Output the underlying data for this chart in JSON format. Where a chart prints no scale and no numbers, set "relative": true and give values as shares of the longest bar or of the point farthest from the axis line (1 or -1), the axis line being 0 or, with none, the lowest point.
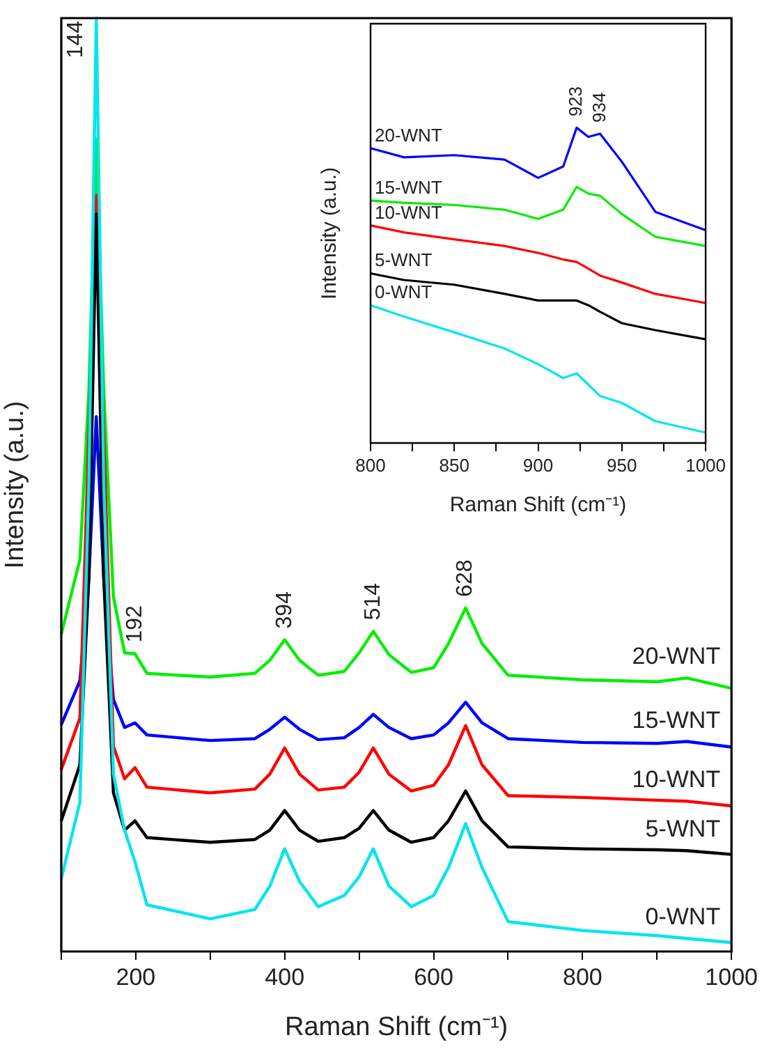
{
  "chart_data": [
    {
      "type": "line",
      "xlabel": "Raman Shift (cm⁻¹)",
      "ylabel": "Intensity (a.u.)",
      "relative": true,
      "xlim": [
        100,
        1000
      ],
      "xticks": [
        {
          "value": 100,
          "label": null
        },
        200,
        {
          "value": 300,
          "label": null
        },
        400,
        {
          "value": 500,
          "label": null
        },
        600,
        {
          "value": 700,
          "label": null
        },
        800,
        {
          "value": 900,
          "label": null
        },
        1000
      ],
      "x": [
        100,
        125,
        137,
        147,
        157,
        170,
        185,
        199,
        215,
        300,
        360,
        380,
        400,
        420,
        445,
        480,
        500,
        519,
        540,
        570,
        600,
        620,
        643,
        665,
        700,
        800,
        900,
        940,
        1000
      ],
      "series": [
        {
          "name": "0-WNT",
          "color": "#00e5f0",
          "values": [
            0.078,
            0.16,
            0.5,
            1.0,
            0.5,
            0.19,
            0.13,
            0.096,
            0.05,
            0.035,
            0.045,
            0.07,
            0.11,
            0.075,
            0.048,
            0.06,
            0.08,
            0.11,
            0.07,
            0.048,
            0.06,
            0.09,
            0.137,
            0.09,
            0.032,
            0.0225,
            0.017,
            0.014,
            0.0095
          ]
        },
        {
          "name": "5-WNT",
          "color": "#000000",
          "values": [
            0.14,
            0.2,
            0.4,
            0.79,
            0.4,
            0.17,
            0.13,
            0.14,
            0.122,
            0.117,
            0.12,
            0.13,
            0.151,
            0.13,
            0.118,
            0.122,
            0.132,
            0.151,
            0.13,
            0.117,
            0.122,
            0.14,
            0.172,
            0.14,
            0.112,
            0.11,
            0.109,
            0.108,
            0.104
          ]
        },
        {
          "name": "10-WNT",
          "color": "#ff0000",
          "values": [
            0.195,
            0.25,
            null,
            0.81,
            null,
            0.22,
            0.185,
            0.197,
            0.176,
            0.17,
            0.174,
            0.19,
            0.218,
            0.19,
            0.173,
            0.176,
            0.192,
            0.218,
            0.19,
            0.172,
            0.178,
            0.2,
            0.242,
            0.2,
            0.167,
            0.165,
            0.162,
            0.161,
            0.156
          ]
        },
        {
          "name": "15-WNT",
          "color": "#0000ff",
          "values": [
            0.243,
            0.29,
            0.4,
            0.573,
            0.4,
            0.27,
            0.24,
            0.245,
            0.232,
            0.226,
            0.228,
            0.238,
            0.251,
            0.238,
            0.227,
            0.229,
            0.24,
            0.254,
            0.24,
            0.228,
            0.232,
            0.245,
            0.267,
            0.245,
            0.228,
            0.224,
            0.223,
            0.225,
            0.219
          ]
        },
        {
          "name": "20-WNT",
          "color": "#00ee00",
          "values": [
            0.34,
            0.42,
            0.6,
            0.87,
            0.6,
            0.38,
            0.32,
            0.319,
            0.298,
            0.294,
            0.298,
            0.312,
            0.334,
            0.312,
            0.296,
            0.3,
            0.32,
            0.343,
            0.318,
            0.299,
            0.304,
            0.33,
            0.368,
            0.33,
            0.296,
            0.291,
            0.289,
            0.293,
            0.282
          ]
        }
      ],
      "annotations": [
        {
          "text": "144",
          "x": 147,
          "y": 1.0
        },
        {
          "text": "192",
          "x": 199,
          "y": 0.319
        },
        {
          "text": "394",
          "x": 400,
          "y": 0.334
        },
        {
          "text": "514",
          "x": 519,
          "y": 0.343
        },
        {
          "text": "628",
          "x": 643,
          "y": 0.368
        }
      ]
    },
    {
      "type": "line",
      "xlabel": "Raman Shift (cm⁻¹)",
      "ylabel": "Intensity (a.u.)",
      "relative": true,
      "xlim": [
        800,
        1000
      ],
      "xticks": [
        800,
        {
          "value": 825,
          "label": null
        },
        850,
        {
          "value": 875,
          "label": null
        },
        900,
        {
          "value": 925,
          "label": null
        },
        950,
        {
          "value": 975,
          "label": null
        },
        1000
      ],
      "x": [
        800,
        820,
        850,
        880,
        900,
        915,
        923,
        930,
        937,
        950,
        970,
        1000
      ],
      "series": [
        {
          "name": "20-WNT",
          "color": "#0000ff",
          "values": [
            0.935,
            0.906,
            0.913,
            0.899,
            0.841,
            0.877,
            1.0,
            0.971,
            0.981,
            0.892,
            0.733,
            0.675
          ]
        },
        {
          "name": "15-WNT",
          "color": "#00ee00",
          "values": [
            0.769,
            0.762,
            0.755,
            0.74,
            0.711,
            0.74,
            0.812,
            0.791,
            0.784,
            0.726,
            0.654,
            0.625
          ]
        },
        {
          "name": "10-WNT",
          "color": "#ff0000",
          "values": [
            0.69,
            0.668,
            0.646,
            0.625,
            0.603,
            0.582,
            0.574,
            0.553,
            0.531,
            0.509,
            0.473,
            0.444
          ]
        },
        {
          "name": "5-WNT",
          "color": "#000000",
          "values": [
            0.538,
            0.517,
            0.502,
            0.473,
            0.452,
            0.452,
            0.452,
            0.437,
            0.416,
            0.38,
            0.358,
            0.329
          ]
        },
        {
          "name": "0-WNT",
          "color": "#00e5f0",
          "values": [
            0.437,
            0.401,
            0.351,
            0.3,
            0.25,
            0.206,
            0.221,
            0.185,
            0.149,
            0.127,
            0.069,
            0.033
          ]
        }
      ],
      "annotations": [
        {
          "text": "923",
          "x": 923,
          "y": 1.0
        },
        {
          "text": "934",
          "x": 937,
          "y": 0.981
        }
      ]
    }
  ]
}
